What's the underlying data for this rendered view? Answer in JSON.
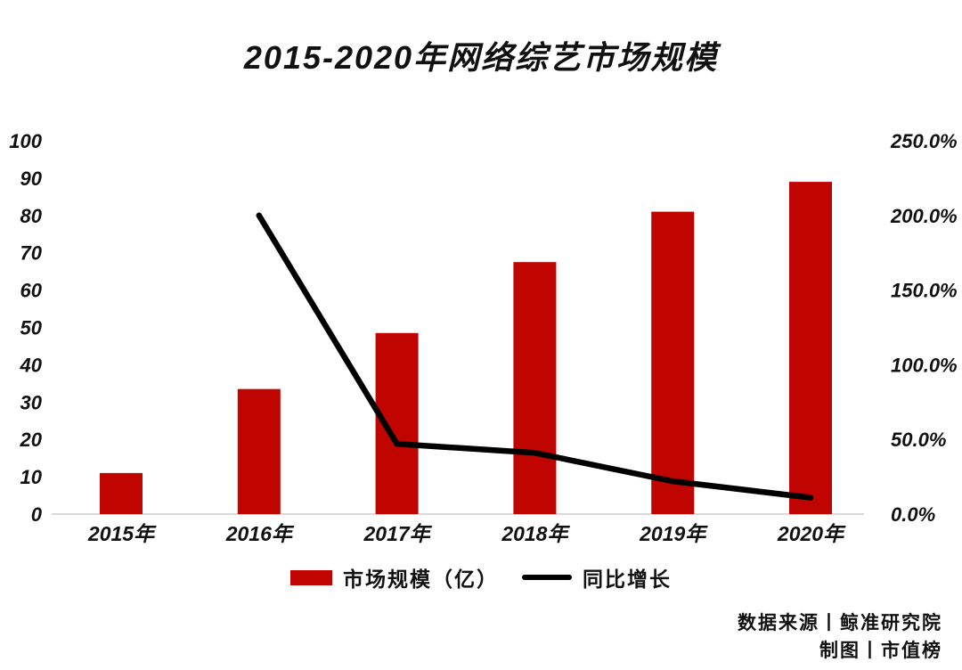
{
  "chart_data": {
    "type": "combo-bar-line",
    "title": "2015-2020年网络综艺市场规模",
    "categories": [
      "2015年",
      "2016年",
      "2017年",
      "2018年",
      "2019年",
      "2020年"
    ],
    "series": [
      {
        "name": "市场规模（亿）",
        "type": "bar",
        "axis": "left",
        "color": "#c00500",
        "values": [
          11,
          33.5,
          48.5,
          67.5,
          81,
          89
        ]
      },
      {
        "name": "同比增长",
        "type": "line",
        "axis": "right",
        "color": "#000000",
        "values": [
          null,
          200,
          47,
          41,
          22,
          11
        ]
      }
    ],
    "left_axis": {
      "min": 0,
      "max": 100,
      "step": 10,
      "ticks": [
        "0",
        "10",
        "20",
        "30",
        "40",
        "50",
        "60",
        "70",
        "80",
        "90",
        "100"
      ]
    },
    "right_axis": {
      "min": 0,
      "max": 250,
      "step": 50,
      "ticks": [
        "0.0%",
        "50.0%",
        "100.0%",
        "150.0%",
        "200.0%",
        "250.0%"
      ]
    },
    "legend": {
      "position": "bottom",
      "entries": [
        "市场规模（亿）",
        "同比增长"
      ]
    },
    "grid": "off",
    "axis_line_color": "#d9d9d9",
    "source_lines": [
      "数据来源丨鲸准研究院",
      "制图丨市值榜"
    ]
  }
}
